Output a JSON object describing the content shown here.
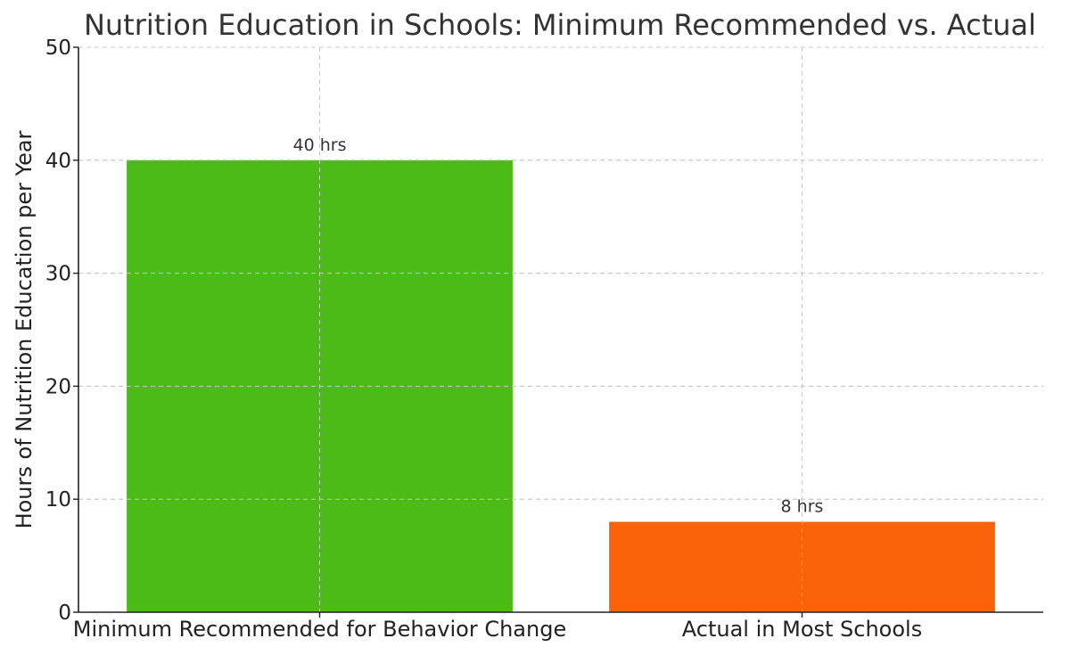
{
  "chart_data": {
    "type": "bar",
    "title": "Nutrition Education in Schools: Minimum Recommended vs. Actual",
    "xlabel": "",
    "ylabel": "Hours of Nutrition Education per Year",
    "categories": [
      "Minimum Recommended for Behavior Change",
      "Actual in Most Schools"
    ],
    "values": [
      40,
      8
    ],
    "data_labels": [
      "40 hrs",
      "8 hrs"
    ],
    "colors": [
      "#4cbb17",
      "#fa630a"
    ],
    "ylim": [
      0,
      50
    ],
    "yticks": [
      0,
      10,
      20,
      30,
      40,
      50
    ],
    "ytick_labels": [
      "0",
      "10",
      "20",
      "30",
      "40",
      "50"
    ],
    "grid": true,
    "legend": "none"
  }
}
